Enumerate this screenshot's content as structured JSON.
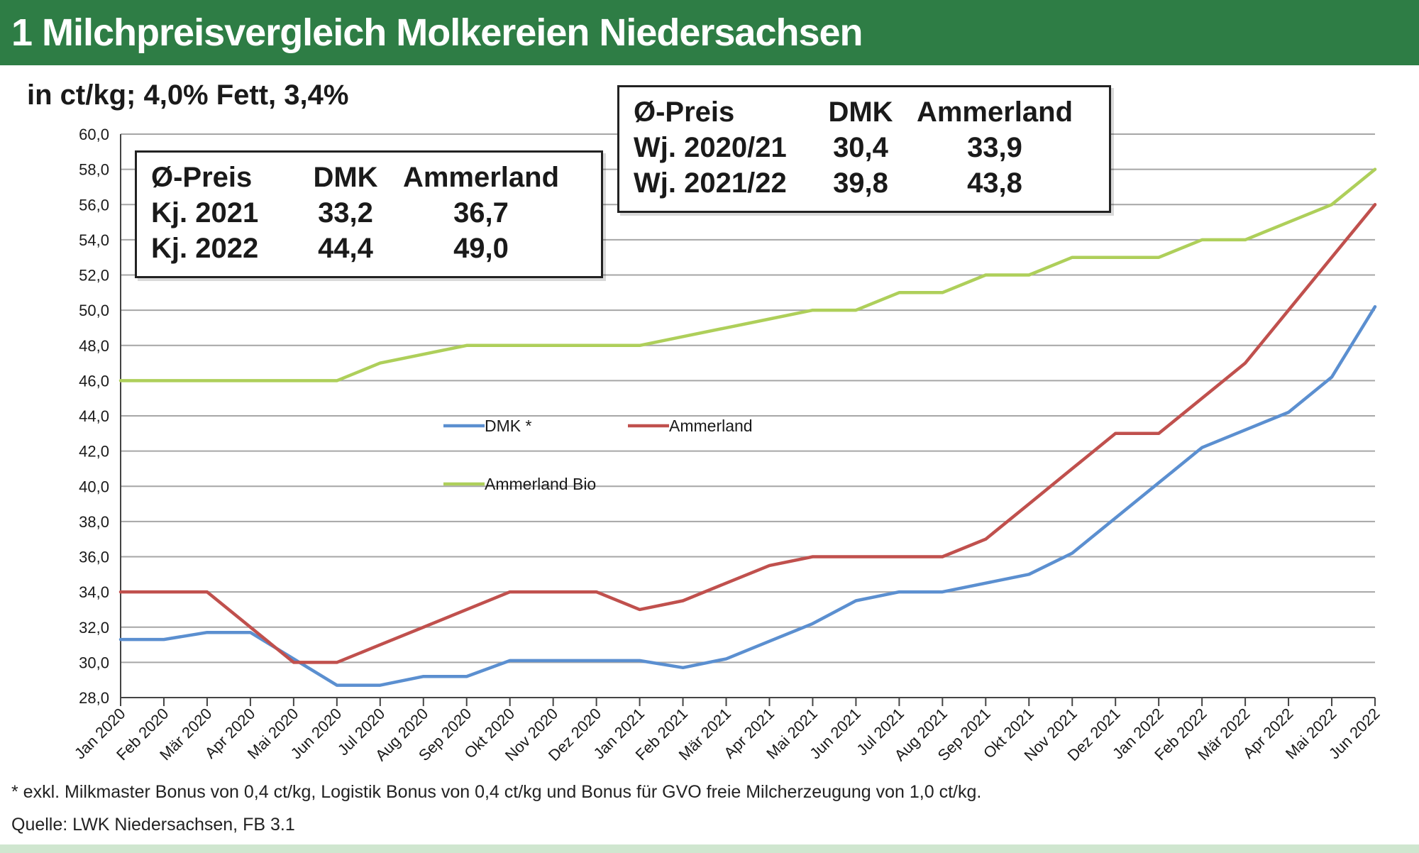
{
  "header": {
    "title": "1 Milchpreisvergleich Molkereien Niedersachsen"
  },
  "unit_label": "in ct/kg; 4,0% Fett, 3,4%",
  "box_kj": {
    "headers": [
      "Ø-Preis",
      "DMK",
      "Ammerland"
    ],
    "rows": [
      [
        "Kj. 2021",
        "33,2",
        "36,7"
      ],
      [
        "Kj. 2022",
        "44,4",
        "49,0"
      ]
    ]
  },
  "box_wj": {
    "headers": [
      "Ø-Preis",
      "DMK",
      "Ammerland"
    ],
    "rows": [
      [
        "Wj. 2020/21",
        "30,4",
        "33,9"
      ],
      [
        "Wj. 2021/22",
        "39,8",
        "43,8"
      ]
    ]
  },
  "footnote": "* exkl. Milkmaster Bonus von 0,4 ct/kg, Logistik Bonus von 0,4 ct/kg und Bonus für GVO freie Milcherzeugung von 1,0 ct/kg.",
  "source": "Quelle: LWK Niedersachsen, FB 3.1",
  "colors": {
    "header_bg": "#2e7d45",
    "dmk": "#5b8fd0",
    "ammerland": "#c0504d",
    "ammerland_bio": "#aecf5a",
    "grid": "#a6a6a6"
  },
  "chart_data": {
    "type": "line",
    "title": "",
    "xlabel": "",
    "ylabel": "",
    "ylim": [
      28,
      60
    ],
    "y_ticks": [
      "28,0",
      "30,0",
      "32,0",
      "34,0",
      "36,0",
      "38,0",
      "40,0",
      "42,0",
      "44,0",
      "46,0",
      "48,0",
      "50,0",
      "52,0",
      "54,0",
      "56,0",
      "58,0",
      "60,0"
    ],
    "grid": true,
    "legend_position": "center",
    "categories": [
      "Jan 2020",
      "Feb 2020",
      "Mär 2020",
      "Apr 2020",
      "Mai 2020",
      "Jun 2020",
      "Jul 2020",
      "Aug 2020",
      "Sep 2020",
      "Okt 2020",
      "Nov 2020",
      "Dez 2020",
      "Jan 2021",
      "Feb 2021",
      "Mär 2021",
      "Apr 2021",
      "Mai 2021",
      "Jun 2021",
      "Jul 2021",
      "Aug 2021",
      "Sep 2021",
      "Okt 2021",
      "Nov 2021",
      "Dez 2021",
      "Jan 2022",
      "Feb 2022",
      "Mär 2022",
      "Apr 2022",
      "Mai 2022",
      "Jun 2022"
    ],
    "series": [
      {
        "name": "DMK *",
        "color": "#5b8fd0",
        "values": [
          31.3,
          31.3,
          31.7,
          31.7,
          30.2,
          28.7,
          28.7,
          29.2,
          29.2,
          30.1,
          30.1,
          30.1,
          30.1,
          29.7,
          30.2,
          31.2,
          32.2,
          33.5,
          34.0,
          34.0,
          34.5,
          35.0,
          36.2,
          38.2,
          40.2,
          42.2,
          43.2,
          44.2,
          46.2,
          50.2
        ]
      },
      {
        "name": "Ammerland",
        "color": "#c0504d",
        "values": [
          34.0,
          34.0,
          34.0,
          32.0,
          30.0,
          30.0,
          31.0,
          32.0,
          33.0,
          34.0,
          34.0,
          34.0,
          33.0,
          33.5,
          34.5,
          35.5,
          36.0,
          36.0,
          36.0,
          36.0,
          37.0,
          39.0,
          41.0,
          43.0,
          43.0,
          45.0,
          47.0,
          50.0,
          53.0,
          56.0
        ]
      },
      {
        "name": "Ammerland Bio",
        "color": "#aecf5a",
        "values": [
          46.0,
          46.0,
          46.0,
          46.0,
          46.0,
          46.0,
          47.0,
          47.5,
          48.0,
          48.0,
          48.0,
          48.0,
          48.0,
          48.5,
          49.0,
          49.5,
          50.0,
          50.0,
          51.0,
          51.0,
          52.0,
          52.0,
          53.0,
          53.0,
          53.0,
          54.0,
          54.0,
          55.0,
          56.0,
          58.0
        ]
      }
    ]
  }
}
